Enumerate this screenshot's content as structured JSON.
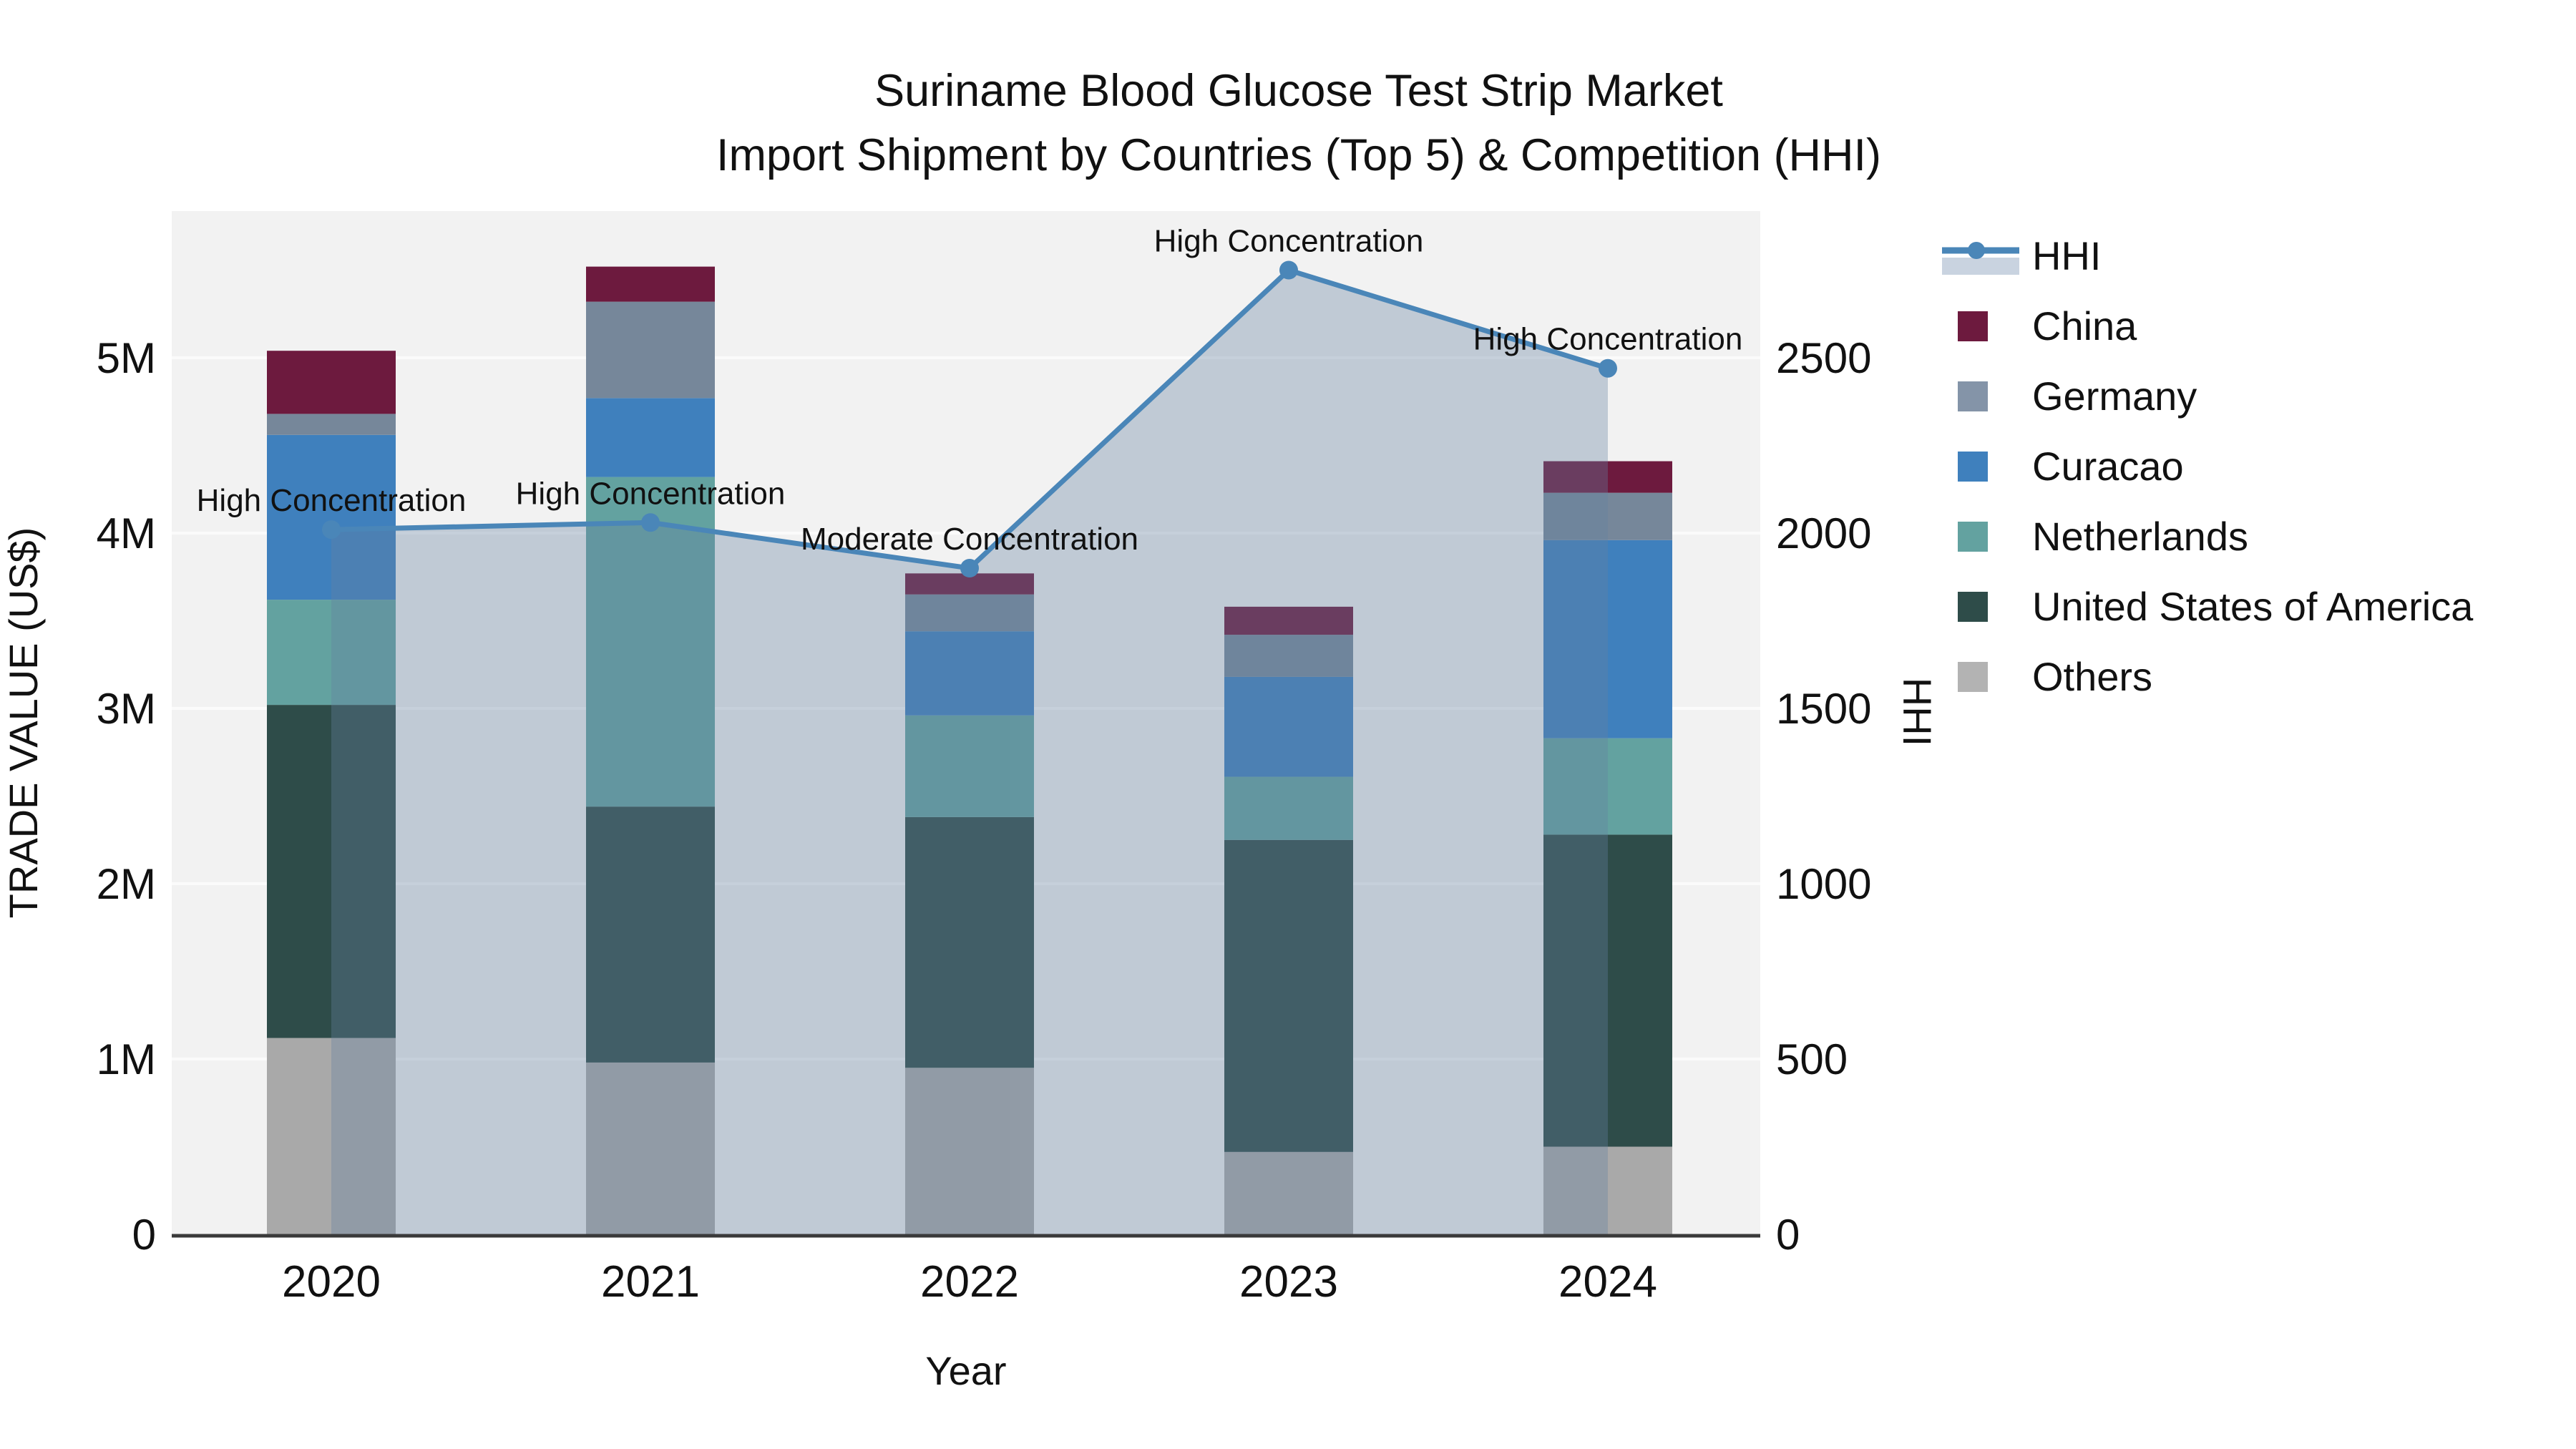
{
  "title": {
    "line1": "Suriname Blood Glucose Test Strip Market",
    "line2": "Import Shipment by Countries (Top 5) & Competition (HHI)"
  },
  "chart_data": {
    "type": "stacked-bar-with-line",
    "title": "Suriname Blood Glucose Test Strip Market — Import Shipment by Countries (Top 5) & Competition (HHI)",
    "xlabel": "Year",
    "ylabel_left": "TRADE VALUE (US$)",
    "ylabel_right": "HHI",
    "categories": [
      "2020",
      "2021",
      "2022",
      "2023",
      "2024"
    ],
    "value_unit": "trade value in millions of US$ (left axis); HHI index points (right axis)",
    "ylim_left_musd": [
      0,
      5.84
    ],
    "ylim_right_hhi": [
      0,
      2920
    ],
    "yticks_left": [
      "0",
      "1M",
      "2M",
      "3M",
      "4M",
      "5M"
    ],
    "yticks_right": [
      "0",
      "500",
      "1000",
      "1500",
      "2000",
      "2500"
    ],
    "grid": "horizontal",
    "legend_position": "right",
    "series": [
      {
        "name": "Others",
        "color": "#a9a9a9",
        "values": [
          1.12,
          0.98,
          0.95,
          0.47,
          0.5
        ]
      },
      {
        "name": "United States of America",
        "color": "#2e4c49",
        "values": [
          1.9,
          1.46,
          1.43,
          1.78,
          1.78
        ]
      },
      {
        "name": "Netherlands",
        "color": "#63a2a0",
        "values": [
          0.6,
          1.88,
          0.58,
          0.36,
          0.55
        ]
      },
      {
        "name": "Curacao",
        "color": "#3f80bd",
        "values": [
          0.94,
          0.45,
          0.48,
          0.57,
          1.13
        ]
      },
      {
        "name": "Germany",
        "color": "#76879a",
        "values": [
          0.12,
          0.55,
          0.21,
          0.24,
          0.27
        ]
      },
      {
        "name": "China",
        "color": "#6d1a3e",
        "values": [
          0.36,
          0.2,
          0.12,
          0.16,
          0.18
        ]
      }
    ],
    "bar_totals_musd": [
      5.04,
      5.52,
      3.77,
      3.58,
      4.41
    ],
    "hhi": {
      "name": "HHI",
      "color": "#4a86b8",
      "fill": "rgba(100,130,160,0.35)",
      "values": [
        2010,
        2030,
        1900,
        2750,
        2470
      ]
    },
    "annotations": [
      "High Concentration",
      "High Concentration",
      "Moderate Concentration",
      "High Concentration",
      "High Concentration"
    ],
    "legend": [
      {
        "label": "HHI",
        "type": "line",
        "color": "#4a86b8"
      },
      {
        "label": "China",
        "type": "patch",
        "color": "#6d1a3e"
      },
      {
        "label": "Germany",
        "type": "patch",
        "color": "#8494a8"
      },
      {
        "label": "Curacao",
        "type": "patch",
        "color": "#3f80bd"
      },
      {
        "label": "Netherlands",
        "type": "patch",
        "color": "#63a2a0"
      },
      {
        "label": "United States of America",
        "type": "patch",
        "color": "#2e4c49"
      },
      {
        "label": "Others",
        "type": "patch",
        "color": "#b3b3b3"
      }
    ],
    "colors": {
      "plot_bg": "#f2f2f2",
      "grid": "#fbfbfb",
      "axis": "#3a3a3a",
      "text": "#111111",
      "legend_line_band": "#c9d3e0"
    }
  }
}
